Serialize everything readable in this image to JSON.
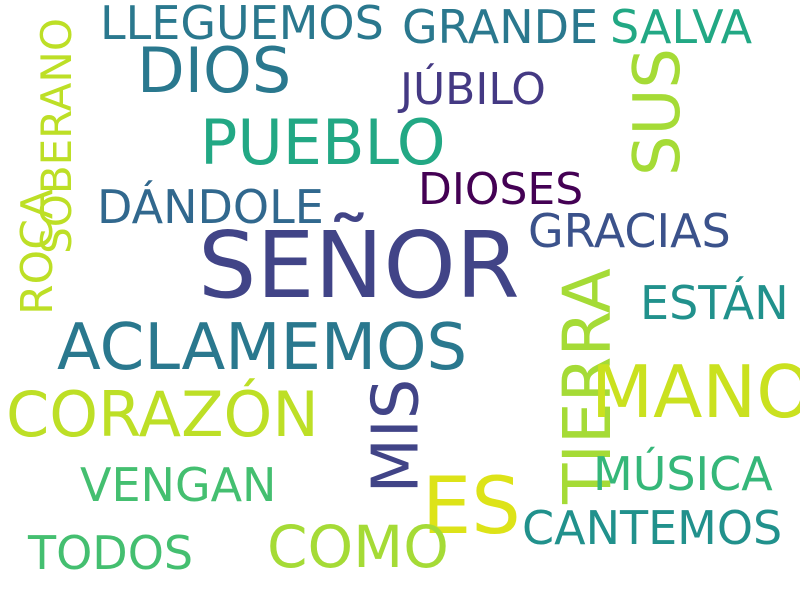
{
  "words": [
    {
      "text": "LLEGUEMOS",
      "color": "#2a788e"
    },
    {
      "text": "GRANDE",
      "color": "#2a788e"
    },
    {
      "text": "SALVA",
      "color": "#22a884"
    },
    {
      "text": "SOBERANO",
      "color": "#bddf26"
    },
    {
      "text": "DIOS",
      "color": "#2a788e"
    },
    {
      "text": "JÚBILO",
      "color": "#443983"
    },
    {
      "text": "SUS",
      "color": "#a5db36"
    },
    {
      "text": "PUEBLO",
      "color": "#22a884"
    },
    {
      "text": "DIOSES",
      "color": "#440154"
    },
    {
      "text": "ROCA",
      "color": "#bddf26"
    },
    {
      "text": "DÁNDOLE",
      "color": "#31688e"
    },
    {
      "text": "GRACIAS",
      "color": "#3b528b"
    },
    {
      "text": "SEÑOR",
      "color": "#414487"
    },
    {
      "text": "TIERRA",
      "color": "#a5db36"
    },
    {
      "text": "ESTÁN",
      "color": "#21918c"
    },
    {
      "text": "ACLAMEMOS",
      "color": "#2a788e"
    },
    {
      "text": "MANO",
      "color": "#cae11f"
    },
    {
      "text": "CORAZÓN",
      "color": "#bddf26"
    },
    {
      "text": "MIS",
      "color": "#414487"
    },
    {
      "text": "MÚSICA",
      "color": "#35b779"
    },
    {
      "text": "VENGAN",
      "color": "#44bf70"
    },
    {
      "text": "ES",
      "color": "#dde318"
    },
    {
      "text": "CANTEMOS",
      "color": "#21918c"
    },
    {
      "text": "COMO",
      "color": "#a5db36"
    },
    {
      "text": "TODOS",
      "color": "#44bf70"
    }
  ]
}
